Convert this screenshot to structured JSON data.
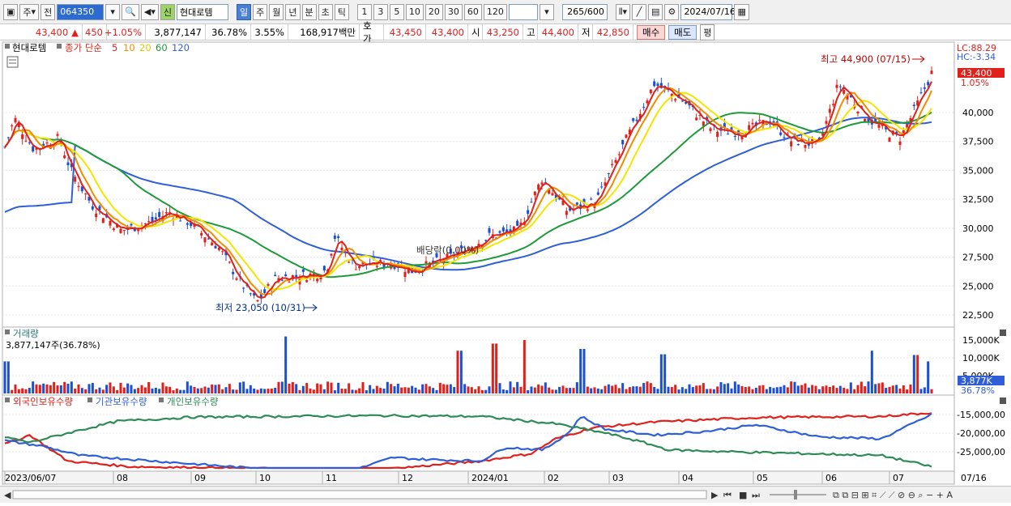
{
  "toolbar": {
    "market": "주",
    "prev": "전",
    "code": "064350",
    "badge": "신",
    "name": "현대로템",
    "periods": [
      "일",
      "주",
      "월",
      "년",
      "분",
      "초",
      "틱"
    ],
    "active_period": "일",
    "intervals": [
      "1",
      "3",
      "5",
      "10",
      "20",
      "30",
      "60",
      "120"
    ],
    "count": "265",
    "count_total": "/600",
    "date": "2024/07/16"
  },
  "quote": {
    "price": "43,400",
    "arrow": "▲",
    "change": "450",
    "change_pct": "+1.05%",
    "volume": "3,877,147",
    "vol_ratio": "36.78%",
    "turnover": "3.55%",
    "amount": "168,917백만",
    "ask_label": "호가",
    "ask": "43,450",
    "bid": "43,400",
    "open_label": "시",
    "open": "43,250",
    "high_label": "고",
    "high": "44,400",
    "low_label": "저",
    "low": "42,850",
    "buy": "매수",
    "sell": "매도",
    "eval": "평"
  },
  "price_pane": {
    "legend_name": "현대로템",
    "legend_ma_label": "종가 단순",
    "ma_periods": [
      "5",
      "10",
      "20",
      "60",
      "120"
    ],
    "ma_colors": [
      "#e0201a",
      "#f08c00",
      "#f2e600",
      "#1f9a3a",
      "#2f5fd6"
    ],
    "lc": "LC:88.29",
    "hc": "HC:-3.34",
    "price_tag": "43,400",
    "pct_tag": "1.05%",
    "max_note": "최고 44,900 (07/15)",
    "min_note": "최저 23,050 (10/31)",
    "dividend_note": "배당락(0.00%)",
    "y_ticks": [
      "40,000",
      "37,500",
      "35,000",
      "32,500",
      "30,000",
      "27,500",
      "25,000",
      "22,500"
    ]
  },
  "volume_pane": {
    "title": "거래량",
    "value": "3,877,147주(36.78%)",
    "y_ticks": [
      "15,000K",
      "10,000K",
      "5,000K"
    ],
    "vol_tag": "3,877K",
    "pct_tag": "36.78%"
  },
  "holder_pane": {
    "series": [
      "외국인보유수량",
      "기관보유수량",
      "개인보유수량"
    ],
    "y_ticks": [
      "-15,000,00",
      "-20,000,00",
      "-25,000,00"
    ]
  },
  "x_axis": {
    "labels": [
      "2023/06/07",
      "08",
      "09",
      "10",
      "11",
      "12",
      "2024/01",
      "02",
      "03",
      "04",
      "05",
      "06",
      "07"
    ],
    "last_date": "07/16"
  }
}
